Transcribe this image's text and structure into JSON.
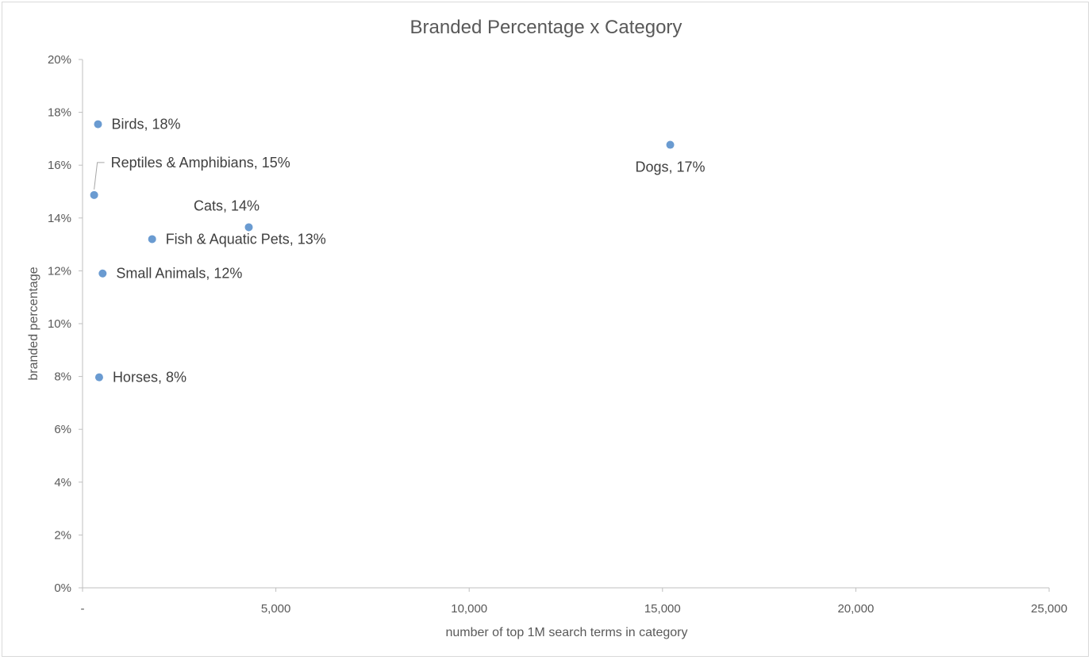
{
  "chart_data": {
    "type": "scatter",
    "title": "Branded Percentage x Category",
    "xlabel": "number of top 1M search terms in category",
    "ylabel": "branded percentage",
    "xlim": [
      0,
      25000
    ],
    "ylim": [
      0,
      0.2
    ],
    "x_ticks": [
      {
        "value": 0,
        "label": "-"
      },
      {
        "value": 5000,
        "label": "5,000"
      },
      {
        "value": 10000,
        "label": "10,000"
      },
      {
        "value": 15000,
        "label": "15,000"
      },
      {
        "value": 20000,
        "label": "20,000"
      },
      {
        "value": 25000,
        "label": "25,000"
      }
    ],
    "y_ticks": [
      {
        "value": 0,
        "label": "0%"
      },
      {
        "value": 0.02,
        "label": "2%"
      },
      {
        "value": 0.04,
        "label": "4%"
      },
      {
        "value": 0.06,
        "label": "6%"
      },
      {
        "value": 0.08,
        "label": "8%"
      },
      {
        "value": 0.1,
        "label": "10%"
      },
      {
        "value": 0.12,
        "label": "12%"
      },
      {
        "value": 0.14,
        "label": "14%"
      },
      {
        "value": 0.16,
        "label": "16%"
      },
      {
        "value": 0.18,
        "label": "18%"
      },
      {
        "value": 0.2,
        "label": "20%"
      }
    ],
    "grid": false,
    "legend": "none",
    "marker_color": "#6a9bd1",
    "points": [
      {
        "name": "Birds",
        "x": 400,
        "y": 0.1755,
        "label": "Birds, 18%",
        "label_pos": "right"
      },
      {
        "name": "Reptiles & Amphibians",
        "x": 300,
        "y": 0.1487,
        "label": "Reptiles & Amphibians, 15%",
        "label_pos": "leader-upper-right"
      },
      {
        "name": "Dogs",
        "x": 15200,
        "y": 0.1677,
        "label": "Dogs, 17%",
        "label_pos": "below"
      },
      {
        "name": "Cats",
        "x": 4300,
        "y": 0.1365,
        "label": "Cats, 14%",
        "label_pos": "above"
      },
      {
        "name": "Fish & Aquatic Pets",
        "x": 1800,
        "y": 0.132,
        "label": "Fish & Aquatic Pets, 13%",
        "label_pos": "right"
      },
      {
        "name": "Small Animals",
        "x": 520,
        "y": 0.119,
        "label": "Small Animals, 12%",
        "label_pos": "right"
      },
      {
        "name": "Horses",
        "x": 430,
        "y": 0.0797,
        "label": "Horses, 8%",
        "label_pos": "right"
      }
    ]
  }
}
